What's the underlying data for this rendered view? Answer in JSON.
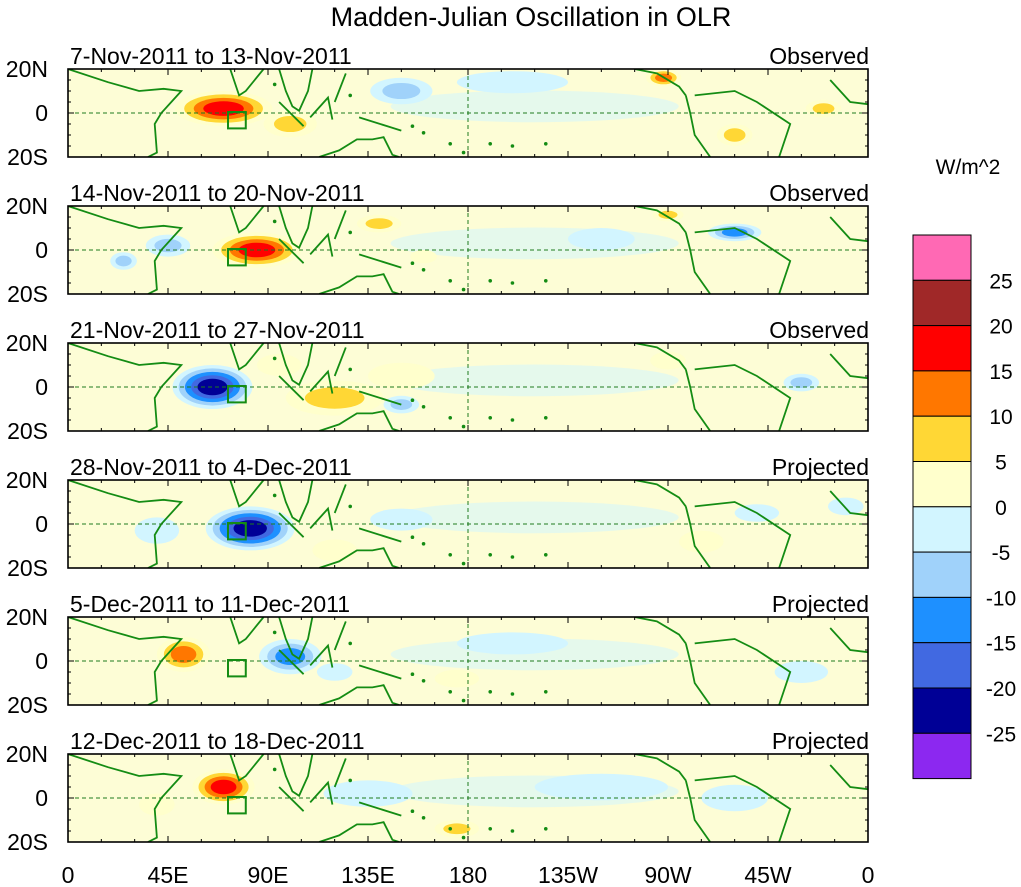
{
  "chart_data": {
    "type": "heatmap",
    "title": "Madden-Julian Oscillation in OLR",
    "units": "W/m^2",
    "lat_range": [
      -20,
      20
    ],
    "lon_range": [
      0,
      360
    ],
    "x_ticks": [
      {
        "lon": 0,
        "label": "0"
      },
      {
        "lon": 45,
        "label": "45E"
      },
      {
        "lon": 90,
        "label": "90E"
      },
      {
        "lon": 135,
        "label": "135E"
      },
      {
        "lon": 180,
        "label": "180"
      },
      {
        "lon": 225,
        "label": "135W"
      },
      {
        "lon": 270,
        "label": "90W"
      },
      {
        "lon": 315,
        "label": "45W"
      },
      {
        "lon": 360,
        "label": "0"
      }
    ],
    "y_ticks": [
      {
        "lat": 20,
        "label": "20N"
      },
      {
        "lat": 0,
        "label": "0"
      },
      {
        "lat": -20,
        "label": "20S"
      }
    ],
    "colorbar": {
      "colors": [
        "#ff69b4",
        "#a02828",
        "#ff0000",
        "#ff7700",
        "#ffd735",
        "#ffffcc",
        "#d2f5ff",
        "#a0d2fa",
        "#1e90ff",
        "#4169e1",
        "#000096",
        "#8c28f0"
      ],
      "labels": [
        "25",
        "20",
        "15",
        "10",
        "5",
        "0",
        "-5",
        "-10",
        "-15",
        "-20",
        "-25"
      ]
    },
    "panels": [
      {
        "period": "7-Nov-2011 to 13-Nov-2011",
        "status": "Observed",
        "anomalies": [
          {
            "lon": 70,
            "lat": 2,
            "rlon": 22,
            "rlat": 8,
            "v": 22
          },
          {
            "lon": 100,
            "lat": -5,
            "rlon": 12,
            "rlat": 6,
            "v": 8
          },
          {
            "lon": 150,
            "lat": 10,
            "rlon": 14,
            "rlat": 6,
            "v": -8
          },
          {
            "lon": 200,
            "lat": 14,
            "rlon": 25,
            "rlat": 5,
            "v": -7
          },
          {
            "lon": 268,
            "lat": 16,
            "rlon": 8,
            "rlat": 4,
            "v": 16
          },
          {
            "lon": 300,
            "lat": -10,
            "rlon": 8,
            "rlat": 5,
            "v": 8
          },
          {
            "lon": 340,
            "lat": 2,
            "rlon": 8,
            "rlat": 4,
            "v": 10
          }
        ]
      },
      {
        "period": "14-Nov-2011 to 20-Nov-2011",
        "status": "Observed",
        "anomalies": [
          {
            "lon": 85,
            "lat": 0,
            "rlon": 20,
            "rlat": 8,
            "v": 18
          },
          {
            "lon": 45,
            "lat": 2,
            "rlon": 10,
            "rlat": 5,
            "v": -9
          },
          {
            "lon": 25,
            "lat": -5,
            "rlon": 6,
            "rlat": 4,
            "v": -8
          },
          {
            "lon": 140,
            "lat": 12,
            "rlon": 10,
            "rlat": 4,
            "v": 9
          },
          {
            "lon": 160,
            "lat": -3,
            "rlon": 6,
            "rlat": 3,
            "v": 6
          },
          {
            "lon": 300,
            "lat": 8,
            "rlon": 12,
            "rlat": 4,
            "v": -16
          },
          {
            "lon": 270,
            "lat": 16,
            "rlon": 7,
            "rlat": 3,
            "v": 12
          },
          {
            "lon": 240,
            "lat": 5,
            "rlon": 15,
            "rlat": 5,
            "v": -4
          }
        ]
      },
      {
        "period": "21-Nov-2011 to 27-Nov-2011",
        "status": "Observed",
        "anomalies": [
          {
            "lon": 65,
            "lat": 0,
            "rlon": 18,
            "rlat": 10,
            "v": -24
          },
          {
            "lon": 120,
            "lat": -5,
            "rlon": 22,
            "rlat": 8,
            "v": 12
          },
          {
            "lon": 150,
            "lat": 5,
            "rlon": 15,
            "rlat": 6,
            "v": 6
          },
          {
            "lon": 150,
            "lat": -8,
            "rlon": 8,
            "rlat": 4,
            "v": -8
          },
          {
            "lon": 95,
            "lat": 10,
            "rlon": 10,
            "rlat": 5,
            "v": 7
          },
          {
            "lon": 330,
            "lat": 2,
            "rlon": 8,
            "rlat": 4,
            "v": -12
          },
          {
            "lon": 270,
            "lat": 12,
            "rlon": 8,
            "rlat": 4,
            "v": 4
          }
        ]
      },
      {
        "period": "28-Nov-2011 to 4-Dec-2011",
        "status": "Projected",
        "anomalies": [
          {
            "lon": 82,
            "lat": -2,
            "rlon": 20,
            "rlat": 10,
            "v": -23
          },
          {
            "lon": 40,
            "lat": -3,
            "rlon": 10,
            "rlat": 6,
            "v": -6
          },
          {
            "lon": 120,
            "lat": -12,
            "rlon": 10,
            "rlat": 5,
            "v": 7
          },
          {
            "lon": 150,
            "lat": 2,
            "rlon": 14,
            "rlat": 5,
            "v": -7
          },
          {
            "lon": 200,
            "lat": -5,
            "rlon": 25,
            "rlat": 8,
            "v": 2
          },
          {
            "lon": 285,
            "lat": -8,
            "rlon": 10,
            "rlat": 5,
            "v": 6
          },
          {
            "lon": 350,
            "lat": 8,
            "rlon": 8,
            "rlat": 4,
            "v": -6
          },
          {
            "lon": 310,
            "lat": 5,
            "rlon": 10,
            "rlat": 4,
            "v": -3
          }
        ]
      },
      {
        "period": "5-Dec-2011 to 11-Dec-2011",
        "status": "Projected",
        "anomalies": [
          {
            "lon": 52,
            "lat": 3,
            "rlon": 12,
            "rlat": 8,
            "v": 16
          },
          {
            "lon": 100,
            "lat": 2,
            "rlon": 14,
            "rlat": 8,
            "v": -13
          },
          {
            "lon": 120,
            "lat": -5,
            "rlon": 8,
            "rlat": 4,
            "v": -6
          },
          {
            "lon": 175,
            "lat": -8,
            "rlon": 10,
            "rlat": 4,
            "v": 6
          },
          {
            "lon": 200,
            "lat": 8,
            "rlon": 25,
            "rlat": 5,
            "v": -4
          },
          {
            "lon": 330,
            "lat": -5,
            "rlon": 12,
            "rlat": 5,
            "v": -3
          },
          {
            "lon": 280,
            "lat": 5,
            "rlon": 12,
            "rlat": 4,
            "v": 2
          }
        ]
      },
      {
        "period": "12-Dec-2011 to 18-Dec-2011",
        "status": "Projected",
        "anomalies": [
          {
            "lon": 70,
            "lat": 5,
            "rlon": 14,
            "rlat": 8,
            "v": 18
          },
          {
            "lon": 40,
            "lat": -3,
            "rlon": 8,
            "rlat": 5,
            "v": 4
          },
          {
            "lon": 135,
            "lat": 2,
            "rlon": 20,
            "rlat": 6,
            "v": -5
          },
          {
            "lon": 175,
            "lat": -14,
            "rlon": 10,
            "rlat": 4,
            "v": 8
          },
          {
            "lon": 240,
            "lat": 5,
            "rlon": 30,
            "rlat": 6,
            "v": -3
          },
          {
            "lon": 300,
            "lat": 0,
            "rlon": 15,
            "rlat": 6,
            "v": -4
          }
        ]
      }
    ]
  }
}
